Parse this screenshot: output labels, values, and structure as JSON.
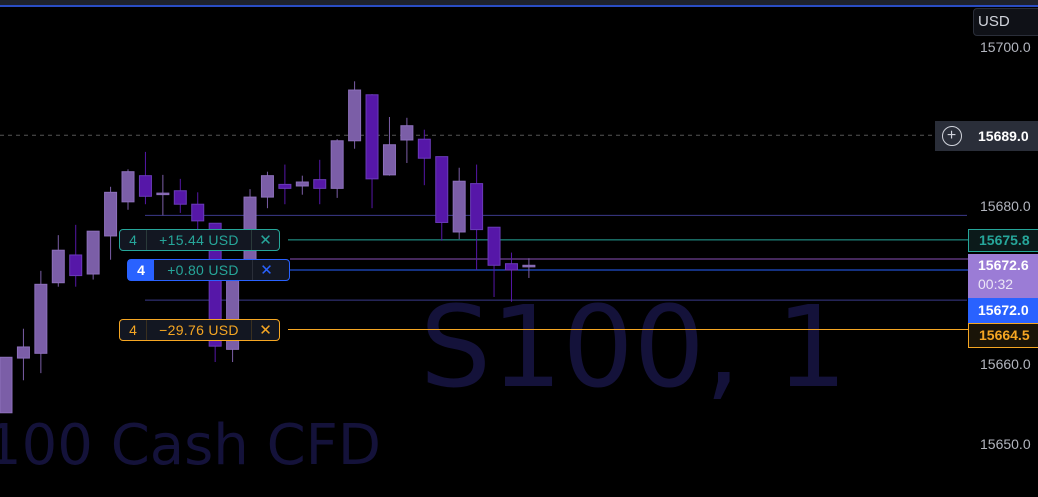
{
  "watermark": {
    "symbol": "S100, 1",
    "description": "100 Cash CFD"
  },
  "currency_button": "USD",
  "colors": {
    "up": "#7b5ea7",
    "down": "#5617a8",
    "background": "#000000",
    "tp": "#26a69a",
    "sl": "#f5a623",
    "entry": "#2962ff",
    "current": "#9b7cd6"
  },
  "axis": {
    "ticks": [
      "15700.0",
      "15680.0",
      "15660.0",
      "15650.0"
    ]
  },
  "crosshair": {
    "price": "15689.0",
    "button_icon": "plus-circle-icon"
  },
  "price_tags": {
    "take_profit": "15675.8",
    "current": "15672.6",
    "countdown": "00:32",
    "entry": "15672.0",
    "stop_loss": "15664.5"
  },
  "orders": [
    {
      "qty": "4",
      "pnl": "+15.44 USD",
      "close_icon": "close-icon",
      "type": "take_profit"
    },
    {
      "qty": "4",
      "pnl": "+0.80 USD",
      "close_icon": "close-icon",
      "type": "entry"
    },
    {
      "qty": "4",
      "pnl": "−29.76 USD",
      "close_icon": "close-icon",
      "type": "stop_loss"
    }
  ],
  "chart_data": {
    "type": "candlestick",
    "ylim": [
      15645,
      15705
    ],
    "levels": [
      15678.9,
      15668.2
    ],
    "candles": [
      [
        15654.0,
        15661.0,
        15654.0,
        15661.0
      ],
      [
        15660.9,
        15664.6,
        15658.1,
        15662.3
      ],
      [
        15661.5,
        15671.9,
        15659.0,
        15670.2
      ],
      [
        15670.4,
        15676.4,
        15669.9,
        15674.5
      ],
      [
        15673.9,
        15677.7,
        15669.9,
        15671.3
      ],
      [
        15671.5,
        15676.9,
        15670.8,
        15676.9
      ],
      [
        15676.3,
        15682.5,
        15673.3,
        15681.8
      ],
      [
        15680.6,
        15684.7,
        15679.6,
        15684.4
      ],
      [
        15683.9,
        15686.9,
        15680.3,
        15681.3
      ],
      [
        15681.7,
        15684.0,
        15678.9,
        15681.7
      ],
      [
        15682.0,
        15683.5,
        15679.2,
        15680.3
      ],
      [
        15680.3,
        15681.8,
        15677.1,
        15678.2
      ],
      [
        15677.9,
        15677.9,
        15660.4,
        15662.4
      ],
      [
        15662.0,
        15672.3,
        15660.4,
        15672.3
      ],
      [
        15672.3,
        15682.2,
        15671.5,
        15681.2
      ],
      [
        15681.2,
        15684.4,
        15679.8,
        15683.9
      ],
      [
        15682.8,
        15685.3,
        15680.3,
        15682.3
      ],
      [
        15682.6,
        15683.9,
        15681.5,
        15683.1
      ],
      [
        15683.4,
        15685.9,
        15680.3,
        15682.3
      ],
      [
        15682.3,
        15688.5,
        15681.1,
        15688.3
      ],
      [
        15688.3,
        15695.8,
        15687.3,
        15694.7
      ],
      [
        15694.1,
        15694.2,
        15679.8,
        15683.5
      ],
      [
        15684.0,
        15691.3,
        15683.9,
        15687.8
      ],
      [
        15688.4,
        15691.2,
        15685.5,
        15690.2
      ],
      [
        15688.5,
        15689.7,
        15682.7,
        15686.1
      ],
      [
        15686.3,
        15686.3,
        15675.7,
        15678.0
      ],
      [
        15676.8,
        15684.9,
        15675.9,
        15683.2
      ],
      [
        15682.9,
        15685.3,
        15672.0,
        15677.1
      ],
      [
        15677.4,
        15677.4,
        15668.6,
        15672.6
      ],
      [
        15672.8,
        15674.2,
        15668.0,
        15672.0
      ],
      [
        15672.4,
        15673.5,
        15671.0,
        15672.6
      ]
    ]
  }
}
